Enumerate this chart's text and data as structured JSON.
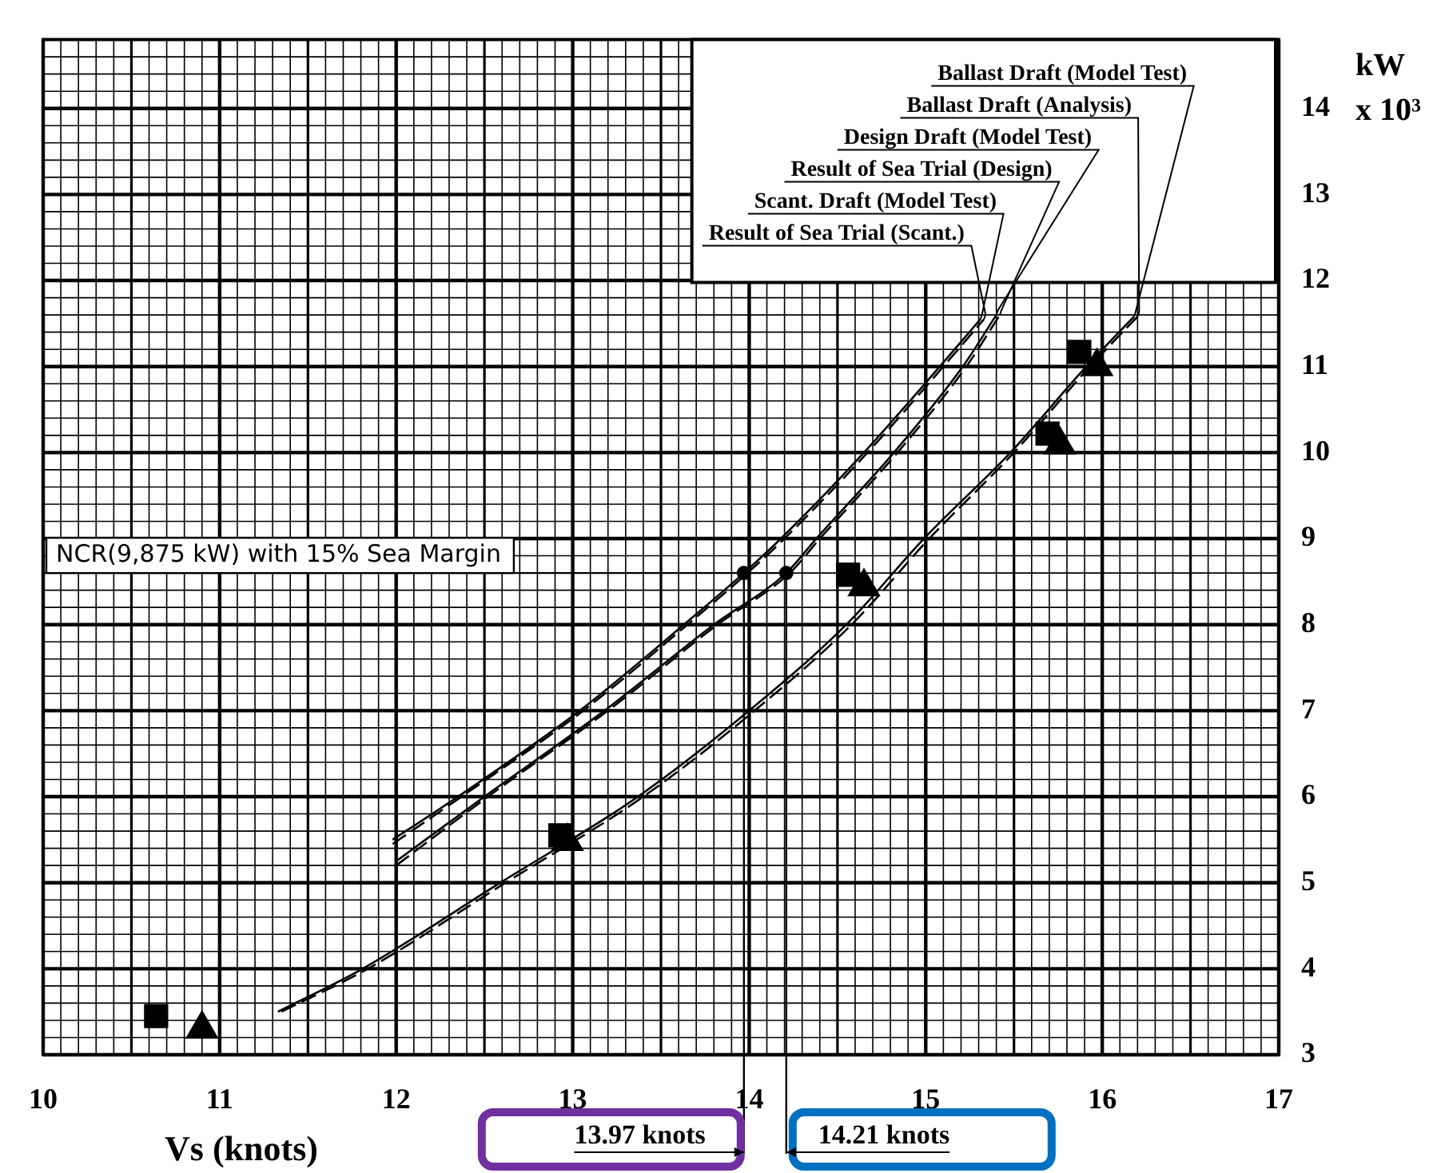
{
  "chart_data": {
    "type": "line",
    "xlabel": "Vs (knots)",
    "ylabel": "kW x 10³",
    "xlim": [
      10,
      17
    ],
    "xticks": [
      10,
      11,
      12,
      13,
      14,
      15,
      16,
      17
    ],
    "ylim": [
      3,
      14.8
    ],
    "yticks": [
      3,
      4,
      5,
      6,
      7,
      8,
      9,
      10,
      11,
      12,
      13,
      14
    ],
    "grid": true,
    "series": [
      {
        "name": "Ballast Draft (Model Test)",
        "color": "#000000",
        "line_style": "solid",
        "x": [
          11.33,
          11.81,
          12.59,
          13.37,
          14.0,
          14.55,
          14.99,
          15.48,
          15.91,
          16.18
        ],
        "values": [
          3.5,
          4.0,
          5.0,
          6.0,
          7.0,
          8.0,
          9.0,
          10.0,
          11.0,
          11.58
        ]
      },
      {
        "name": "Ballast Draft (Analysis)",
        "color": "#000000",
        "line_style": "dashed",
        "x": [
          11.35,
          11.84,
          12.62,
          13.4,
          14.03,
          14.58,
          15.02,
          15.5,
          15.93,
          16.2
        ],
        "values": [
          3.5,
          4.0,
          5.0,
          6.0,
          7.0,
          8.0,
          9.0,
          10.0,
          11.0,
          11.58
        ]
      },
      {
        "name": "Design Draft (Model Test)",
        "color": "#000000",
        "line_style": "solid",
        "x": [
          12.0,
          12.5,
          13.18,
          13.8,
          14.21,
          14.38,
          14.82,
          15.21,
          15.4
        ],
        "values": [
          5.25,
          6.0,
          7.0,
          8.0,
          8.6,
          9.0,
          10.0,
          11.0,
          11.6
        ]
      },
      {
        "name": "Result of Sea Trial (Design)",
        "color": "#000000",
        "line_style": "dashed",
        "x": [
          12.0,
          12.52,
          13.2,
          13.82,
          14.23,
          14.4,
          14.84,
          15.23,
          15.42
        ],
        "values": [
          5.2,
          6.0,
          7.0,
          8.0,
          8.6,
          9.0,
          10.0,
          11.0,
          11.6
        ]
      },
      {
        "name": "Scant. Draft (Model Test)",
        "color": "#000000",
        "line_style": "solid",
        "x": [
          11.98,
          12.35,
          13.04,
          13.63,
          13.97,
          14.18,
          14.65,
          15.08,
          15.31
        ],
        "values": [
          5.5,
          6.0,
          7.0,
          8.0,
          8.6,
          9.0,
          10.0,
          11.0,
          11.55
        ]
      },
      {
        "name": "Result of Sea Trial (Scant.)",
        "color": "#000000",
        "line_style": "dashed",
        "x": [
          11.98,
          12.37,
          13.06,
          13.65,
          13.99,
          14.2,
          14.67,
          15.1,
          15.33
        ],
        "values": [
          5.45,
          6.0,
          7.0,
          8.0,
          8.6,
          9.0,
          10.0,
          11.0,
          11.55
        ]
      },
      {
        "type": "scatter",
        "color": "#000000",
        "marker": "square",
        "x": [
          10.64,
          12.93,
          14.56,
          15.69,
          15.87
        ],
        "values": [
          3.45,
          5.55,
          8.58,
          10.22,
          11.17
        ]
      },
      {
        "type": "scatter",
        "color": "#000000",
        "marker": "triangle",
        "x": [
          10.9,
          12.97,
          14.65,
          15.76,
          15.97
        ],
        "values": [
          3.3,
          5.48,
          8.44,
          10.09,
          11.0
        ]
      },
      {
        "type": "scatter",
        "color": "#000000",
        "marker": "circle",
        "x": [
          13.97,
          14.21
        ],
        "values": [
          8.6,
          8.6
        ]
      }
    ],
    "ref_lines": [
      {
        "axis": "y",
        "value": 8.6,
        "label": "NCR(9,875 kW) with 15% Sea Margin"
      },
      {
        "axis": "x",
        "value": 13.97,
        "label": "13.97 knots"
      },
      {
        "axis": "x",
        "value": 14.21,
        "label": "14.21 knots"
      }
    ]
  }
}
